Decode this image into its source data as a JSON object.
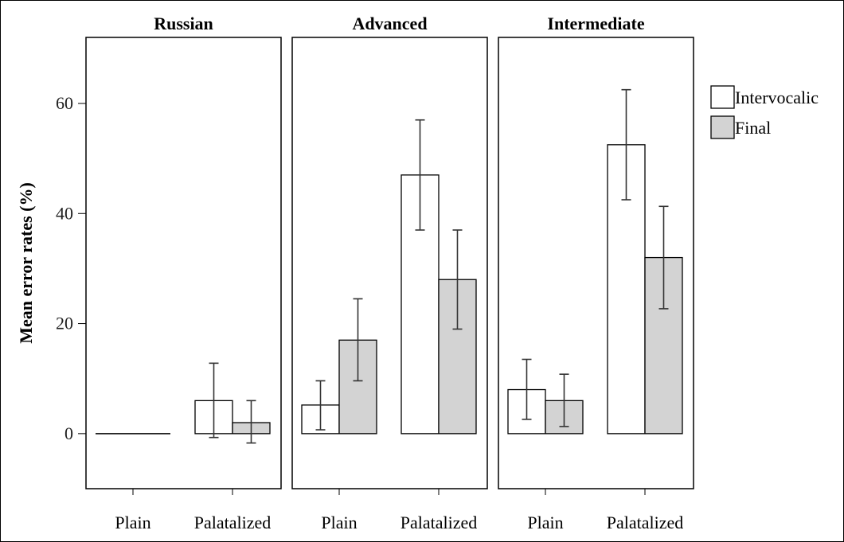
{
  "chart_data": {
    "type": "bar",
    "ylabel": "Mean error rates (%)",
    "ylim": [
      -10,
      72
    ],
    "yticks": [
      0,
      20,
      40,
      60
    ],
    "categories": [
      "Plain",
      "Palatalized"
    ],
    "legend_position": "right",
    "series": [
      {
        "name": "Intervocalic",
        "color": "#ffffff"
      },
      {
        "name": "Final",
        "color": "#d3d3d3"
      }
    ],
    "panels": [
      {
        "title": "Russian",
        "intervocalic": [
          0,
          6
        ],
        "final": [
          0,
          2
        ],
        "intervocalic_err": [
          null,
          [
            -0.7,
            12.8
          ]
        ],
        "final_err": [
          null,
          [
            -1.7,
            6
          ]
        ]
      },
      {
        "title": "Advanced",
        "intervocalic": [
          5.2,
          47
        ],
        "final": [
          17,
          28
        ],
        "intervocalic_err": [
          [
            0.7,
            9.6
          ],
          [
            37,
            57
          ]
        ],
        "final_err": [
          [
            9.6,
            24.5
          ],
          [
            19,
            37
          ]
        ]
      },
      {
        "title": "Intermediate",
        "intervocalic": [
          8,
          52.5
        ],
        "final": [
          6,
          32
        ],
        "intervocalic_err": [
          [
            2.6,
            13.5
          ],
          [
            42.5,
            62.5
          ]
        ],
        "final_err": [
          [
            1.3,
            10.8
          ],
          [
            22.7,
            41.3
          ]
        ]
      }
    ]
  }
}
